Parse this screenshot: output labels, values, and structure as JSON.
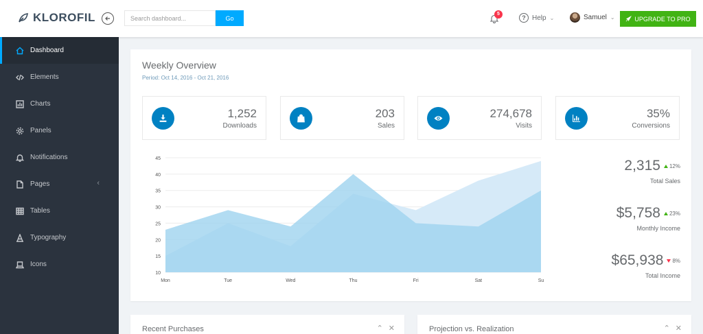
{
  "brand": {
    "name": "KLOROFIL"
  },
  "header": {
    "search_placeholder": "Search dashboard...",
    "go_label": "Go",
    "notification_count": "5",
    "help_label": "Help",
    "user_name": "Samuel",
    "upgrade_label": "UPGRADE TO PRO"
  },
  "sidebar": {
    "items": [
      {
        "label": "Dashboard",
        "icon": "home-icon",
        "active": true
      },
      {
        "label": "Elements",
        "icon": "code-icon"
      },
      {
        "label": "Charts",
        "icon": "chart-icon"
      },
      {
        "label": "Panels",
        "icon": "gear-icon"
      },
      {
        "label": "Notifications",
        "icon": "bell-icon"
      },
      {
        "label": "Pages",
        "icon": "file-icon",
        "expandable": true
      },
      {
        "label": "Tables",
        "icon": "table-icon"
      },
      {
        "label": "Typography",
        "icon": "typography-icon"
      },
      {
        "label": "Icons",
        "icon": "laptop-icon"
      }
    ]
  },
  "overview": {
    "title": "Weekly Overview",
    "period": "Period: Oct 14, 2016 - Oct 21, 2016",
    "metrics": [
      {
        "value": "1,252",
        "label": "Downloads",
        "icon": "download-icon"
      },
      {
        "value": "203",
        "label": "Sales",
        "icon": "bag-icon"
      },
      {
        "value": "274,678",
        "label": "Visits",
        "icon": "eye-icon"
      },
      {
        "value": "35%",
        "label": "Conversions",
        "icon": "bar-chart-icon"
      }
    ],
    "stats": [
      {
        "value": "2,315",
        "change": "12%",
        "direction": "up",
        "label": "Total Sales"
      },
      {
        "value": "$5,758",
        "change": "23%",
        "direction": "up",
        "label": "Monthly Income"
      },
      {
        "value": "$65,938",
        "change": "8%",
        "direction": "down",
        "label": "Total Income"
      }
    ]
  },
  "chart_data": {
    "type": "area",
    "x": [
      "Mon",
      "Tue",
      "Wed",
      "Thu",
      "Fri",
      "Sat",
      "Su"
    ],
    "yticks": [
      10,
      15,
      20,
      25,
      30,
      35,
      40,
      45
    ],
    "ylim": [
      10,
      45
    ],
    "grid": true,
    "series": [
      {
        "values": [
          15,
          25,
          18,
          34,
          29,
          38,
          44
        ],
        "color": "#d6eaf8"
      },
      {
        "values": [
          23,
          29,
          24,
          40,
          25,
          24,
          35
        ],
        "color": "#9fd3ef"
      }
    ]
  },
  "bottom_panels": [
    {
      "title": "Recent Purchases",
      "collapse": "⌃",
      "close": "✕"
    },
    {
      "title": "Projection vs. Realization",
      "collapse": "⌃",
      "close": "✕"
    }
  ]
}
